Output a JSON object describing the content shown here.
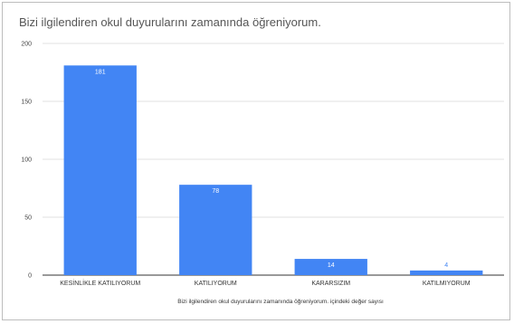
{
  "chart_data": {
    "type": "bar",
    "title": "Bizi ilgilendiren okul duyurularını zamanında öğreniyorum.",
    "xlabel": "Bizi ilgilendiren okul duyurularını zamanında öğreniyorum. içindeki değer sayısı",
    "ylabel": "",
    "categories": [
      "KESİNLİKLE KATILIYORUM",
      "KATILIYORUM",
      "KARARSIZIM",
      "KATILMIYORUM"
    ],
    "values": [
      181,
      78,
      14,
      4
    ],
    "ylim": [
      0,
      200
    ],
    "yticks": [
      "0",
      "50",
      "100",
      "150",
      "200"
    ],
    "data_labels": [
      "181",
      "78",
      "14",
      "4"
    ],
    "grid": true,
    "legend": "none",
    "colors": {
      "bar": "#4285f4",
      "grid": "#d9d9d9",
      "label_inside": "#ffffff",
      "label_outside": "#4285f4"
    }
  }
}
